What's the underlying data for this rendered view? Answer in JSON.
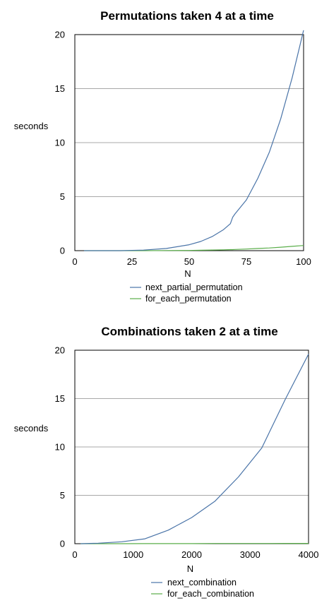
{
  "chart_data": [
    {
      "type": "line",
      "title": "Permutations taken 4 at a time",
      "xlabel": "N",
      "ylabel": "seconds",
      "xlim": [
        0,
        100
      ],
      "ylim": [
        0,
        20
      ],
      "xticks": [
        "0",
        "25",
        "50",
        "75",
        "100"
      ],
      "yticks": [
        "0",
        "5",
        "10",
        "15",
        "20"
      ],
      "grid": "horizontal",
      "legend_position": "bottom",
      "x": [
        4,
        10,
        20,
        30,
        40,
        50,
        55,
        60,
        65,
        68,
        69,
        70,
        75,
        80,
        85,
        90,
        95,
        100
      ],
      "series": [
        {
          "name": "next_partial_permutation",
          "color": "#4a74a8",
          "values": [
            0.0,
            0.0,
            0.0,
            0.05,
            0.2,
            0.55,
            0.85,
            1.3,
            1.95,
            2.5,
            3.1,
            3.4,
            4.7,
            6.7,
            9.1,
            12.2,
            16.0,
            20.4
          ]
        },
        {
          "name": "for_each_permutation",
          "color": "#5aae4a",
          "values": [
            0.0,
            0.0,
            0.0,
            0.0,
            0.01,
            0.02,
            0.04,
            0.06,
            0.08,
            0.1,
            0.1,
            0.11,
            0.15,
            0.2,
            0.25,
            0.32,
            0.4,
            0.48
          ]
        }
      ]
    },
    {
      "type": "line",
      "title": "Combinations taken 2 at a time",
      "xlabel": "N",
      "ylabel": "seconds",
      "xlim": [
        0,
        4000
      ],
      "ylim": [
        0,
        20
      ],
      "xticks": [
        "0",
        "1000",
        "2000",
        "3000",
        "4000"
      ],
      "yticks": [
        "0",
        "5",
        "10",
        "15",
        "20"
      ],
      "grid": "horizontal",
      "legend_position": "bottom",
      "x": [
        100,
        400,
        800,
        1200,
        1600,
        2000,
        2400,
        2800,
        3200,
        3600,
        4000
      ],
      "series": [
        {
          "name": "next_combination",
          "color": "#4a74a8",
          "values": [
            0.0,
            0.05,
            0.2,
            0.5,
            1.4,
            2.7,
            4.4,
            6.9,
            9.9,
            14.9,
            19.6
          ]
        },
        {
          "name": "for_each_combination",
          "color": "#5aae4a",
          "values": [
            0.0,
            0.0,
            0.0,
            0.01,
            0.01,
            0.01,
            0.02,
            0.02,
            0.02,
            0.03,
            0.03
          ]
        }
      ]
    }
  ]
}
